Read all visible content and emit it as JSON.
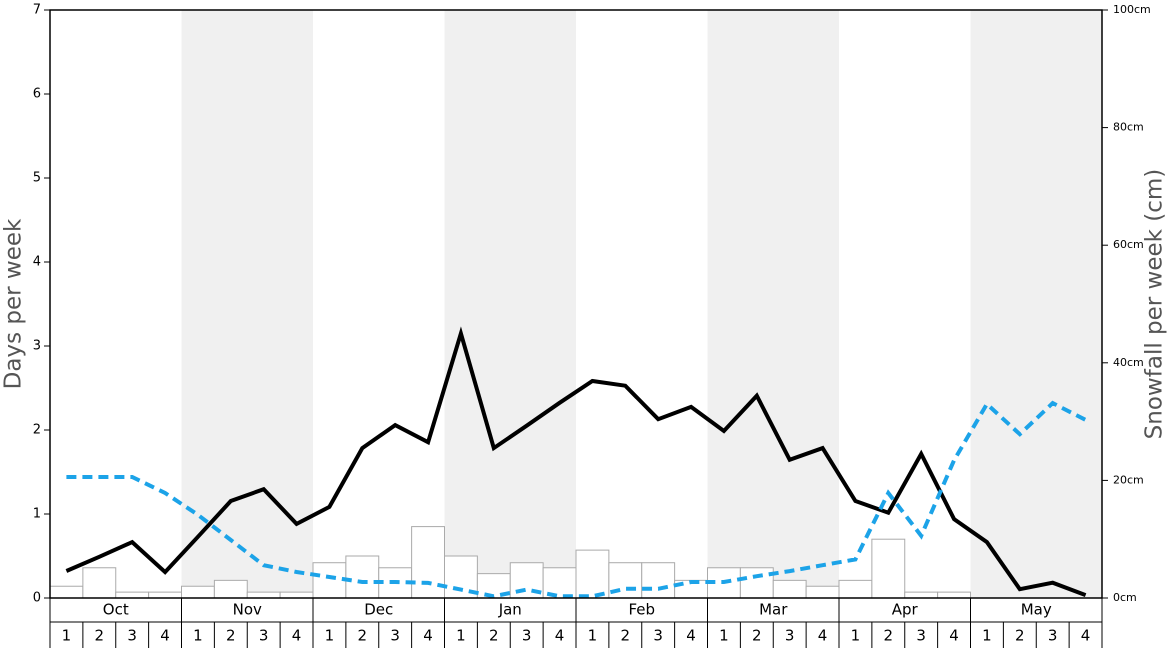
{
  "chart_data": {
    "type": "bar",
    "ylabel": "Days per week",
    "y2label": "Snowfall per week (cm)",
    "months": [
      "Oct",
      "Nov",
      "Dec",
      "Jan",
      "Feb",
      "Mar",
      "Apr",
      "May"
    ],
    "shaded_months": [
      false,
      true,
      false,
      true,
      false,
      true,
      false,
      true
    ],
    "shade_color": "#f0f0f0",
    "categories": [
      "1",
      "2",
      "3",
      "4",
      "1",
      "2",
      "3",
      "4",
      "1",
      "2",
      "3",
      "4",
      "1",
      "2",
      "3",
      "4",
      "1",
      "2",
      "3",
      "4",
      "1",
      "2",
      "3",
      "4",
      "1",
      "2",
      "3",
      "4",
      "1",
      "2",
      "3",
      "4"
    ],
    "values": [
      0.14,
      0.36,
      0.07,
      0.07,
      0.14,
      0.21,
      0.07,
      0.07,
      0.42,
      0.5,
      0.36,
      0.85,
      0.5,
      0.29,
      0.42,
      0.36,
      0.57,
      0.42,
      0.42,
      0.21,
      0.36,
      0.36,
      0.21,
      0.14,
      0.21,
      0.7,
      0.07,
      0.07,
      0,
      0,
      0,
      0
    ],
    "color": "#ffffff",
    "series": [
      {
        "color": "#000000",
        "style": "solid",
        "axis": "y2",
        "values": [
          4.6,
          7.0,
          9.5,
          4.4,
          10.4,
          16.5,
          18.5,
          12.6,
          15.5,
          25.5,
          29.4,
          26.5,
          45.0,
          25.5,
          29.3,
          33.2,
          36.9,
          36.1,
          30.4,
          32.5,
          28.4,
          34.4,
          23.5,
          25.5,
          16.5,
          14.5,
          24.5,
          13.4,
          9.5,
          1.5,
          2.6,
          0.5
        ]
      },
      {
        "color": "#1ca3e8",
        "style": "dashed",
        "axis": "y",
        "values": [
          1.44,
          1.44,
          1.44,
          1.25,
          0.99,
          0.69,
          0.39,
          0.31,
          0.25,
          0.19,
          0.19,
          0.18,
          0.1,
          0.02,
          0.1,
          0.02,
          0.02,
          0.11,
          0.11,
          0.19,
          0.19,
          0.26,
          0.32,
          0.39,
          0.46,
          1.25,
          0.74,
          1.64,
          2.31,
          1.95,
          2.32,
          2.12
        ]
      }
    ],
    "ylim": [
      0,
      7
    ],
    "yticks": [
      0,
      1,
      2,
      3,
      4,
      5,
      6,
      7
    ],
    "y2lim": [
      0,
      100
    ],
    "y2ticks": [
      {
        "value": 0,
        "label": "0cm"
      },
      {
        "value": 20,
        "label": "20cm"
      },
      {
        "value": 40,
        "label": "40cm"
      },
      {
        "value": 60,
        "label": "60cm"
      },
      {
        "value": 80,
        "label": "80cm"
      },
      {
        "value": 100,
        "label": "100cm"
      }
    ]
  }
}
